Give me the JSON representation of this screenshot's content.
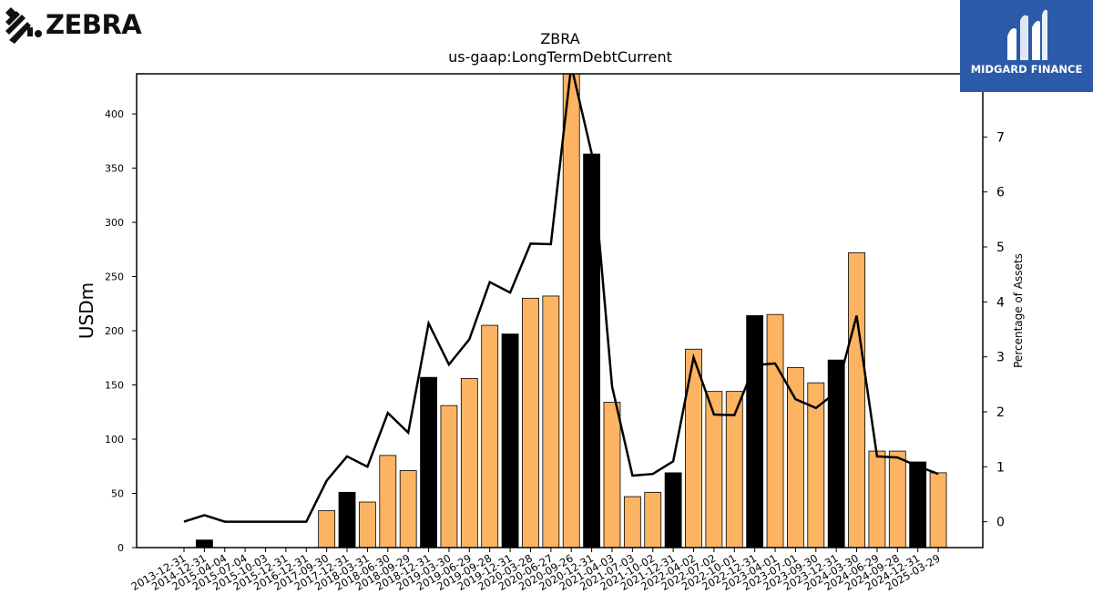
{
  "brand": {
    "left_logo_text": "ZEBRA",
    "right_logo_text": "MIDGARD FINANCE"
  },
  "colors": {
    "bar_default": "#fdb462",
    "bar_highlight": "#000000",
    "line": "#000000",
    "brand_blue": "#2c5aa8"
  },
  "chart_data": {
    "type": "bar",
    "title": "ZBRA",
    "subtitle": "us-gaap:LongTermDebtCurrent",
    "ylabel": "USDm",
    "y2label": "Percentage of Assets",
    "ylim": [
      0,
      437
    ],
    "y2lim": [
      -0.47,
      8.15
    ],
    "yticks": [
      0,
      50,
      100,
      150,
      200,
      250,
      300,
      350,
      400
    ],
    "y2ticks": [
      0,
      1,
      2,
      3,
      4,
      5,
      6,
      7
    ],
    "categories": [
      "2013-12-31",
      "2014-12-31",
      "2015-04-04",
      "2015-07-04",
      "2015-10-03",
      "2015-12-31",
      "2016-12-31",
      "2017-09-30",
      "2017-12-31",
      "2018-03-31",
      "2018-06-30",
      "2018-09-29",
      "2018-12-31",
      "2019-03-30",
      "2019-06-29",
      "2019-09-28",
      "2019-12-31",
      "2020-03-28",
      "2020-06-27",
      "2020-09-26",
      "2020-12-31",
      "2021-04-03",
      "2021-07-03",
      "2021-10-02",
      "2021-12-31",
      "2022-04-02",
      "2022-07-02",
      "2022-10-01",
      "2022-12-31",
      "2023-04-01",
      "2023-07-01",
      "2023-09-30",
      "2023-12-31",
      "2024-03-30",
      "2024-06-29",
      "2024-09-28",
      "2024-12-31",
      "2025-03-29"
    ],
    "series": [
      {
        "values": [
          0,
          7,
          0,
          0,
          0,
          0,
          0,
          34,
          51,
          42,
          85,
          71,
          157,
          131,
          156,
          205,
          197,
          230,
          232,
          450,
          363,
          134,
          47,
          51,
          69,
          183,
          144,
          144,
          214,
          215,
          166,
          152,
          173,
          272,
          89,
          89,
          79,
          69
        ],
        "highlight": [
          false,
          true,
          false,
          false,
          false,
          false,
          false,
          false,
          true,
          false,
          false,
          false,
          true,
          false,
          false,
          false,
          true,
          false,
          false,
          false,
          true,
          false,
          false,
          false,
          true,
          false,
          false,
          false,
          true,
          false,
          false,
          false,
          true,
          false,
          false,
          false,
          true,
          false
        ]
      },
      {
        "values": [
          0,
          0.12,
          0,
          0,
          0,
          0,
          0,
          0.75,
          1.19,
          1.0,
          1.98,
          1.62,
          3.61,
          2.86,
          3.32,
          4.36,
          4.17,
          5.06,
          5.05,
          8.3,
          6.7,
          2.46,
          0.84,
          0.87,
          1.1,
          2.99,
          1.95,
          1.94,
          2.85,
          2.88,
          2.23,
          2.07,
          2.36,
          3.75,
          1.19,
          1.17,
          1.01,
          0.87
        ]
      }
    ]
  }
}
